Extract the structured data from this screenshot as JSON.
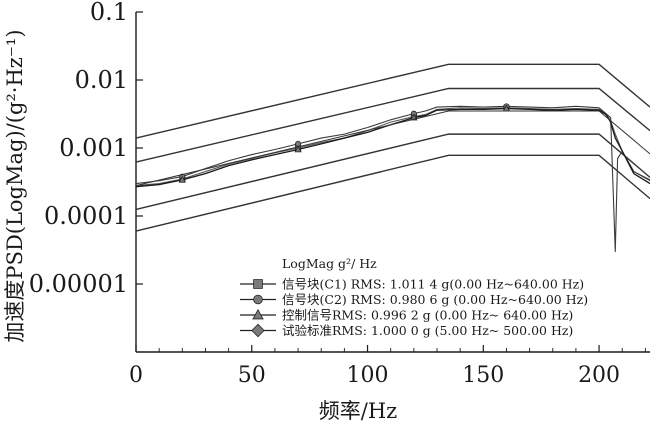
{
  "chart_data": {
    "type": "line",
    "xlabel": "频率/Hz",
    "ylabel": "加速度PSD(LogMag)/(g²·Hz⁻¹)",
    "ylog": true,
    "xlim": [
      0,
      222
    ],
    "ylim": [
      1e-06,
      0.1
    ],
    "x_ticks": [
      0,
      50,
      100,
      150,
      200
    ],
    "x_tick_labels": [
      "0",
      "50",
      "100",
      "150",
      "200"
    ],
    "y_ticks": [
      1e-05,
      0.0001,
      0.001,
      0.01,
      0.1
    ],
    "y_tick_labels": [
      "0.00001",
      "0.0001",
      "0.001",
      "0.01",
      "0.1"
    ],
    "grid": false,
    "legend_placement": "bottom-center",
    "legend_title": "LogMag g²/ Hz",
    "colors": {
      "axis": "#1a1a1a",
      "envelope": "#333333",
      "signal_c1": "#555555",
      "signal_c2": "#3a3a3a",
      "control": "#1a1a1a",
      "marker_fill": "#7a7a7a"
    },
    "envelopes": [
      {
        "role": "upper-abort",
        "x": [
          0,
          135,
          200,
          222
        ],
        "y": [
          0.0014,
          0.017,
          0.017,
          0.004
        ]
      },
      {
        "role": "upper-alarm",
        "x": [
          0,
          135,
          200,
          222
        ],
        "y": [
          0.00062,
          0.0075,
          0.0075,
          0.0018
        ]
      },
      {
        "role": "lower-alarm",
        "x": [
          0,
          135,
          200,
          222
        ],
        "y": [
          0.000125,
          0.0016,
          0.0016,
          0.00037
        ]
      },
      {
        "role": "lower-abort",
        "x": [
          0,
          135,
          200,
          222
        ],
        "y": [
          6e-05,
          0.00078,
          0.00078,
          0.00018
        ]
      }
    ],
    "series": [
      {
        "name": "信号块(C1) RMS: 1.011 4 g(0.00 Hz~640.00 Hz)",
        "marker": "square",
        "x": [
          0,
          10,
          20,
          30,
          40,
          50,
          60,
          70,
          80,
          90,
          100,
          110,
          120,
          125,
          130,
          140,
          150,
          160,
          170,
          180,
          190,
          200,
          203,
          205,
          207,
          210,
          215,
          222
        ],
        "y": [
          0.00028,
          0.0003,
          0.00035,
          0.00045,
          0.00058,
          0.0007,
          0.00085,
          0.001,
          0.0012,
          0.0014,
          0.0018,
          0.0024,
          0.0029,
          0.0031,
          0.0037,
          0.0039,
          0.0038,
          0.0039,
          0.0038,
          0.0037,
          0.0038,
          0.0037,
          0.0032,
          0.0025,
          0.0016,
          0.0009,
          0.00045,
          0.00033
        ]
      },
      {
        "name": "信号块(C2) RMS: 0.980 6 g (0.00 Hz~640.00 Hz)",
        "marker": "circle",
        "x": [
          0,
          10,
          20,
          30,
          40,
          50,
          60,
          70,
          80,
          90,
          100,
          110,
          120,
          125,
          130,
          140,
          150,
          160,
          170,
          180,
          190,
          200,
          203,
          205,
          207,
          208,
          210,
          215,
          222
        ],
        "y": [
          0.0003,
          0.00033,
          0.00038,
          0.0005,
          0.00065,
          0.0008,
          0.00095,
          0.00115,
          0.0014,
          0.0016,
          0.002,
          0.0026,
          0.0032,
          0.0035,
          0.004,
          0.0041,
          0.004,
          0.0041,
          0.004,
          0.0039,
          0.0041,
          0.0039,
          0.0032,
          0.0028,
          3e-05,
          0.0007,
          0.0009,
          0.00045,
          0.00034
        ]
      },
      {
        "name": "控制信号RMS: 0.996 2 g (0.00 Hz~ 640.00 Hz)",
        "marker": "triangle",
        "x": [
          0,
          10,
          20,
          30,
          40,
          50,
          60,
          70,
          80,
          90,
          100,
          110,
          120,
          125,
          130,
          140,
          150,
          160,
          170,
          180,
          190,
          200,
          203,
          205,
          207,
          210,
          215,
          222
        ],
        "y": [
          0.00027,
          0.00029,
          0.00034,
          0.00042,
          0.00055,
          0.00067,
          0.0008,
          0.00095,
          0.00115,
          0.0014,
          0.0017,
          0.0022,
          0.0028,
          0.003,
          0.0036,
          0.0037,
          0.0037,
          0.0038,
          0.0037,
          0.0036,
          0.0037,
          0.0036,
          0.0031,
          0.0024,
          0.0014,
          0.0009,
          0.00042,
          0.0003
        ]
      },
      {
        "name": "试验标准RMS: 1.000 0 g (5.00 Hz~ 500.00 Hz)",
        "marker": "diamond",
        "x": [
          0,
          135,
          200,
          222
        ],
        "y": [
          0.00028,
          0.0035,
          0.0035,
          0.00082
        ]
      }
    ]
  }
}
